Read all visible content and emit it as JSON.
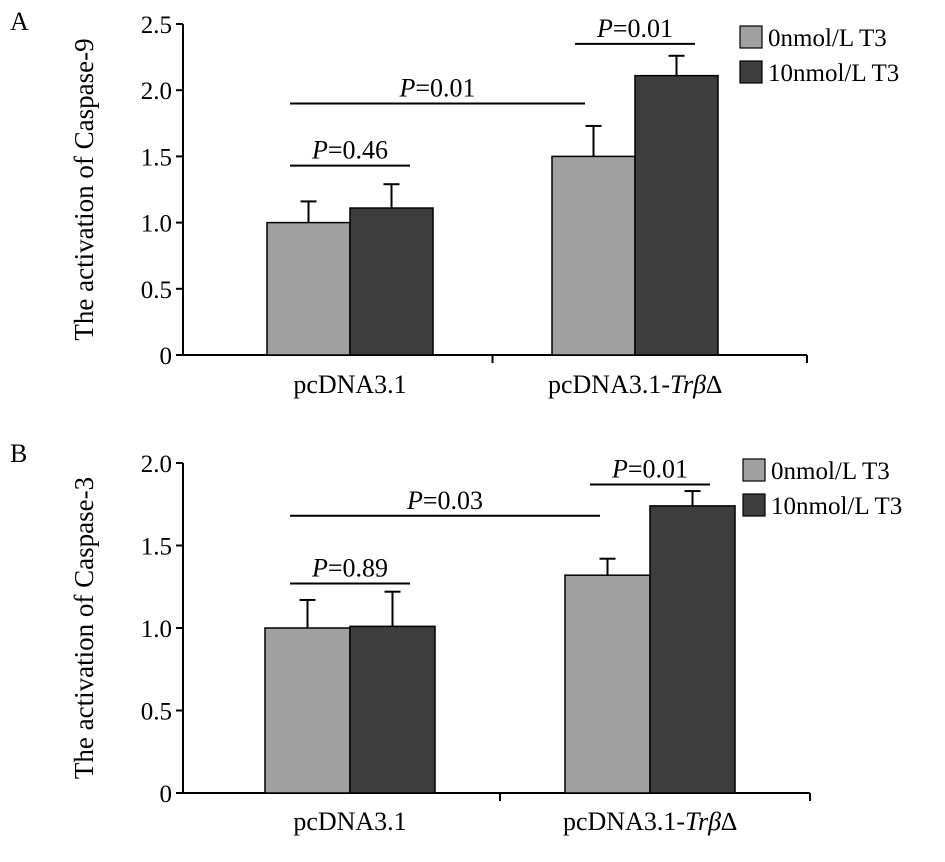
{
  "chart_data": [
    {
      "panel": "A",
      "type": "bar",
      "title": "",
      "xlabel": "",
      "ylabel": "The activation of Caspase-9",
      "ylim": [
        0,
        2.5
      ],
      "yticks": [
        "0",
        "0.5",
        "1.0",
        "1.5",
        "2.0",
        "2.5"
      ],
      "categories": [
        {
          "label": "pcDNA3.1",
          "main": "pcDNA3.1",
          "italic": ""
        },
        {
          "label": "pcDNA3.1-Trβ∆",
          "main": "pcDNA3.1-",
          "italic": "Trβ∆"
        }
      ],
      "series": [
        {
          "name": "0nmol/L T3",
          "color": "#a0a0a0",
          "values": [
            1.0,
            1.5
          ],
          "errors": [
            0.16,
            0.23
          ]
        },
        {
          "name": "10nmol/L T3",
          "color": "#3d3d3d",
          "values": [
            1.11,
            2.11
          ],
          "errors": [
            0.18,
            0.15
          ]
        }
      ],
      "significance": [
        {
          "label": "P=0.46",
          "p": "P",
          "value": "=0.46",
          "type": "within",
          "category": 0,
          "y": 1.43
        },
        {
          "label": "P=0.01",
          "p": "P",
          "value": "=0.01",
          "type": "within",
          "category": 1,
          "y": 2.35
        },
        {
          "label": "P=0.01",
          "p": "P",
          "value": "=0.01",
          "type": "between",
          "y": 1.9
        }
      ]
    },
    {
      "panel": "B",
      "type": "bar",
      "title": "",
      "xlabel": "",
      "ylabel": "The activation of Caspase-3",
      "ylim": [
        0,
        2.0
      ],
      "yticks": [
        "0",
        "0.5",
        "1.0",
        "1.5",
        "2.0"
      ],
      "categories": [
        {
          "label": "pcDNA3.1",
          "main": "pcDNA3.1",
          "italic": ""
        },
        {
          "label": "pcDNA3.1-Trβ∆",
          "main": "pcDNA3.1-",
          "italic": "Trβ∆"
        }
      ],
      "series": [
        {
          "name": "0nmol/L T3",
          "color": "#a0a0a0",
          "values": [
            1.0,
            1.32
          ],
          "errors": [
            0.17,
            0.1
          ]
        },
        {
          "name": "10nmol/L T3",
          "color": "#3d3d3d",
          "values": [
            1.01,
            1.74
          ],
          "errors": [
            0.21,
            0.09
          ]
        }
      ],
      "significance": [
        {
          "label": "P=0.89",
          "p": "P",
          "value": "=0.89",
          "type": "within",
          "category": 0,
          "y": 1.27
        },
        {
          "label": "P=0.01",
          "p": "P",
          "value": "=0.01",
          "type": "within",
          "category": 1,
          "y": 1.87
        },
        {
          "label": "P=0.03",
          "p": "P",
          "value": "=0.03",
          "type": "between",
          "y": 1.68
        }
      ]
    }
  ]
}
